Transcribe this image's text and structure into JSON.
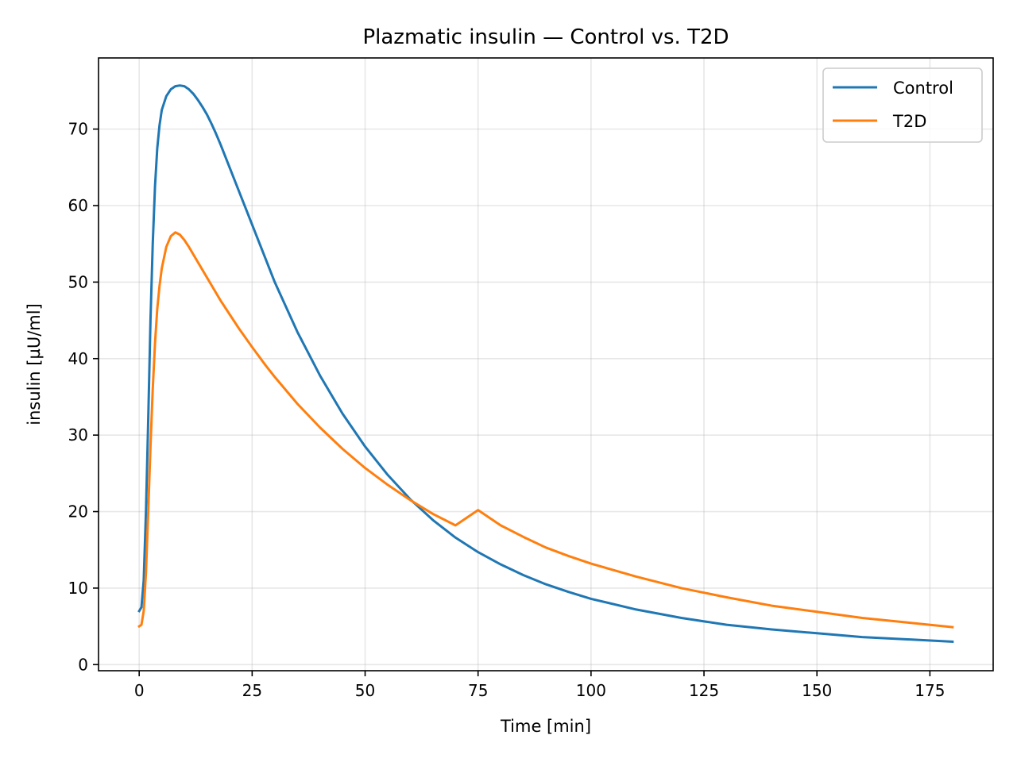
{
  "chart_data": {
    "type": "line",
    "title": "Plazmatic insulin — Control vs. T2D",
    "xlabel": "Time [min]",
    "ylabel": "insulin [µU/ml]",
    "xlim": [
      -9,
      189
    ],
    "ylim": [
      -0.8,
      79.3
    ],
    "xticks": [
      0,
      25,
      50,
      75,
      100,
      125,
      150,
      175
    ],
    "yticks": [
      0,
      10,
      20,
      30,
      40,
      50,
      60,
      70
    ],
    "grid": true,
    "legend": "top-right",
    "series": [
      {
        "name": "Control",
        "color": "#1f77b4",
        "x": [
          0,
          0.5,
          1,
          1.5,
          2,
          2.5,
          3,
          3.5,
          4,
          4.5,
          5,
          6,
          7,
          8,
          9,
          10,
          11,
          12,
          13,
          14,
          15,
          16,
          17,
          18,
          20,
          22,
          25,
          28,
          30,
          35,
          40,
          45,
          50,
          55,
          60,
          65,
          70,
          75,
          80,
          85,
          90,
          95,
          100,
          110,
          120,
          130,
          140,
          150,
          160,
          170,
          180
        ],
        "y": [
          7,
          7.5,
          11,
          20,
          32,
          45,
          55,
          62.5,
          67.5,
          70.5,
          72.5,
          74.3,
          75.2,
          75.6,
          75.7,
          75.6,
          75.2,
          74.6,
          73.8,
          72.9,
          71.9,
          70.7,
          69.4,
          68,
          65,
          62,
          57.5,
          53,
          50,
          43.5,
          37.8,
          32.8,
          28.5,
          24.8,
          21.6,
          18.9,
          16.6,
          14.7,
          13.1,
          11.7,
          10.5,
          9.5,
          8.6,
          7.2,
          6.1,
          5.2,
          4.6,
          4.1,
          3.6,
          3.3,
          3
        ]
      },
      {
        "name": "T2D",
        "color": "#ff7f0e",
        "x": [
          0,
          0.5,
          1,
          1.5,
          2,
          2.5,
          3,
          3.5,
          4,
          4.5,
          5,
          6,
          7,
          8,
          9,
          10,
          11,
          12,
          14,
          16,
          18,
          20,
          22,
          25,
          28,
          30,
          35,
          40,
          45,
          50,
          55,
          60,
          65,
          70,
          75,
          80,
          85,
          90,
          95,
          100,
          110,
          120,
          130,
          140,
          150,
          160,
          170,
          180
        ],
        "y": [
          5,
          5.2,
          7,
          12,
          20,
          28.5,
          36,
          42,
          46.5,
          49.5,
          51.8,
          54.6,
          56,
          56.5,
          56.2,
          55.5,
          54.6,
          53.6,
          51.6,
          49.6,
          47.6,
          45.8,
          44,
          41.5,
          39.1,
          37.6,
          34.1,
          31,
          28.2,
          25.7,
          23.5,
          21.5,
          19.7,
          18.2,
          20.2,
          18.2,
          16.7,
          15.3,
          14.2,
          13.2,
          11.5,
          10,
          8.8,
          7.7,
          6.9,
          6.1,
          5.5,
          4.9
        ]
      }
    ]
  }
}
